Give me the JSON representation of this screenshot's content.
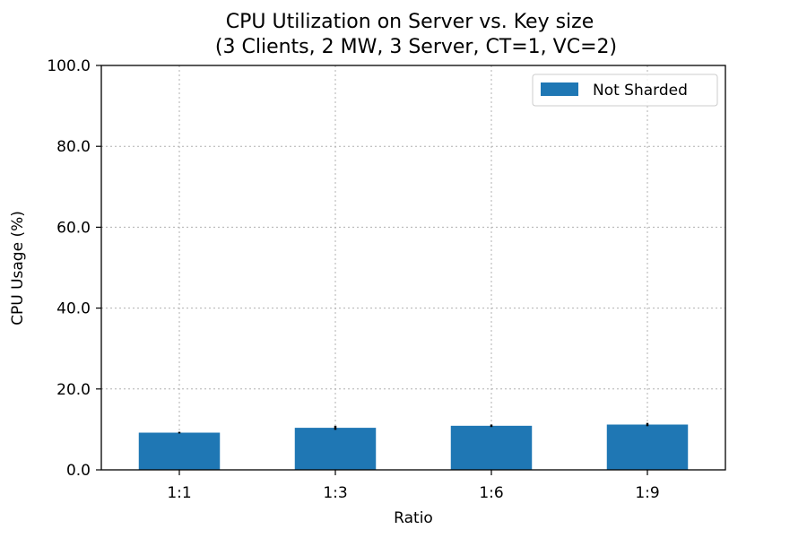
{
  "chart_data": {
    "type": "bar",
    "title_line1": "CPU Utilization on Server vs. Key size",
    "title_line2": "(3 Clients, 2 MW, 3 Server, CT=1, VC=2)",
    "xlabel": "Ratio",
    "ylabel": "CPU Usage (%)",
    "categories": [
      "1:1",
      "1:3",
      "1:6",
      "1:9"
    ],
    "series": [
      {
        "name": "Not Sharded",
        "values": [
          9.2,
          10.4,
          10.9,
          11.2
        ],
        "errors": [
          0.2,
          0.5,
          0.3,
          0.4
        ],
        "color": "#1f77b4"
      }
    ],
    "ylim": [
      0,
      100
    ],
    "yticks": [
      "0.0",
      "20.0",
      "40.0",
      "60.0",
      "80.0",
      "100.0"
    ],
    "grid": true,
    "legend_position": "top-right"
  }
}
